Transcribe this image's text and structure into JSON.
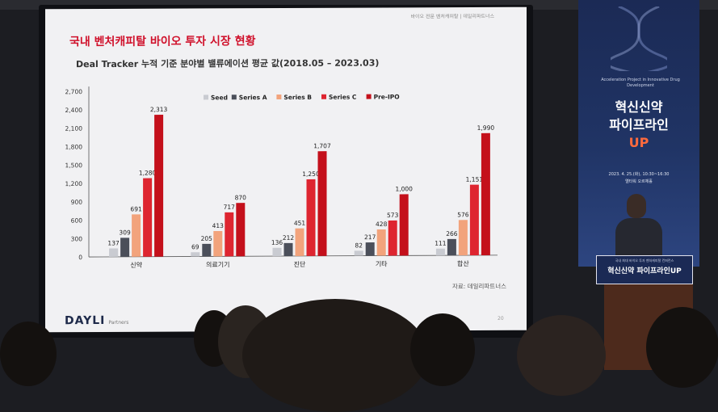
{
  "slide": {
    "header": "바이오 전문 벤처캐피탈 | 데일리파트너스",
    "title": "국내 벤처캐피탈 바이오 투자 시장 현황",
    "subtitle": "Deal Tracker 누적 기준 분야별 밸류에이션 평균 값(2018.05 – 2023.03)",
    "source": "자료: 데일리파트너스",
    "logo": "DAYLI",
    "logo_sub": "Partners",
    "page_number": "20"
  },
  "chart_data": {
    "type": "bar",
    "categories": [
      "신약",
      "의료기기",
      "진단",
      "기타",
      "합산"
    ],
    "series": [
      {
        "name": "Seed",
        "color": "#c9cbd1",
        "values": [
          137,
          69,
          136,
          82,
          111
        ]
      },
      {
        "name": "Series A",
        "color": "#4b4f5a",
        "values": [
          309,
          205,
          212,
          217,
          266
        ]
      },
      {
        "name": "Series B",
        "color": "#f2a37c",
        "values": [
          691,
          413,
          451,
          428,
          576
        ]
      },
      {
        "name": "Series C",
        "color": "#de2530",
        "values": [
          1280,
          717,
          1250,
          573,
          1151
        ]
      },
      {
        "name": "Pre-IPO",
        "color": "#c4101b",
        "values": [
          2313,
          870,
          1707,
          1000,
          1990
        ]
      }
    ],
    "value_labels": [
      [
        "137",
        "309",
        "691",
        "1,280",
        "2,313"
      ],
      [
        "69",
        "205",
        "413",
        "717",
        "870"
      ],
      [
        "136",
        "212",
        "451",
        "1,250",
        "1,707"
      ],
      [
        "82",
        "217",
        "428",
        "573",
        "1,000"
      ],
      [
        "111",
        "266",
        "576",
        "1,151",
        "1,990"
      ]
    ],
    "yticks": [
      0,
      300,
      600,
      900,
      1200,
      1500,
      1800,
      2100,
      2400,
      2700
    ],
    "ytick_labels": [
      "0",
      "300",
      "600",
      "900",
      "1,200",
      "1,500",
      "1,800",
      "2,100",
      "2,400",
      "2,700"
    ],
    "ylim": [
      0,
      2700
    ],
    "legend_position": "top-right",
    "grid": false
  },
  "banner": {
    "small_text": "Acceleration Project in Innovative Drug Development",
    "title_line1": "혁신신약",
    "title_line2": "파이프라인",
    "title_line3": "UP",
    "date": "2023. 4. 25.(화), 10:30~16:30",
    "venue": "엘타워 오르체홀"
  },
  "podium": {
    "small_text": "국내 최대 바이오 투자 벤처캐피탈 컨퍼런스",
    "title": "혁신신약 파이프라인UP"
  }
}
